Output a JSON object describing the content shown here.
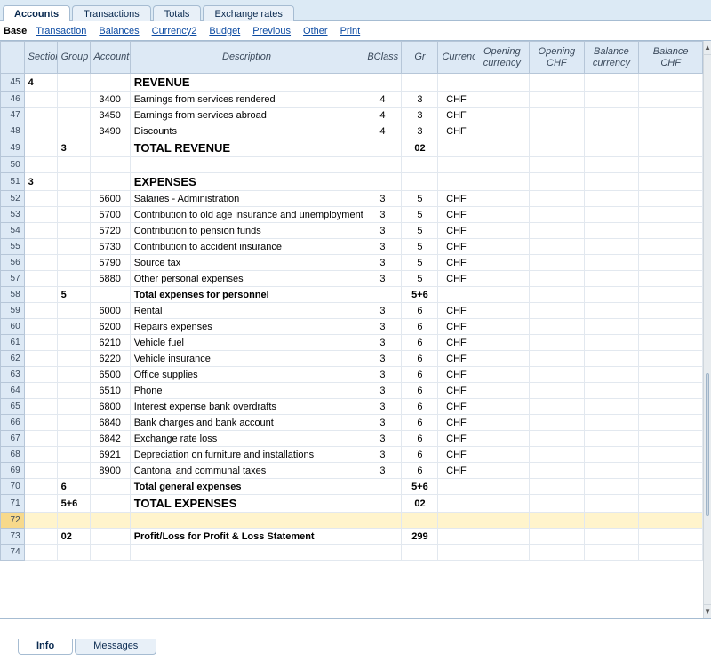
{
  "tabs_top": [
    {
      "label": "Accounts",
      "active": true
    },
    {
      "label": "Transactions",
      "active": false
    },
    {
      "label": "Totals",
      "active": false
    },
    {
      "label": "Exchange rates",
      "active": false
    }
  ],
  "subnav": {
    "base": "Base",
    "links": [
      "Transaction",
      "Balances",
      "Currency2",
      "Budget",
      "Previous",
      "Other",
      "Print"
    ]
  },
  "columns": [
    "Section",
    "Group",
    "Account",
    "Description",
    "BClass",
    "Gr",
    "Currency",
    "Opening currency",
    "Opening CHF",
    "Balance currency",
    "Balance CHF"
  ],
  "rows": [
    {
      "n": 45,
      "section": "4",
      "group": "",
      "account": "",
      "desc": "REVENUE",
      "bclass": "",
      "gr": "",
      "curr": "",
      "bold": true,
      "big": true
    },
    {
      "n": 46,
      "section": "",
      "group": "",
      "account": "3400",
      "desc": "Earnings from services rendered",
      "bclass": "4",
      "gr": "3",
      "curr": "CHF"
    },
    {
      "n": 47,
      "section": "",
      "group": "",
      "account": "3450",
      "desc": "Earnings from services abroad",
      "bclass": "4",
      "gr": "3",
      "curr": "CHF"
    },
    {
      "n": 48,
      "section": "",
      "group": "",
      "account": "3490",
      "desc": "Discounts",
      "bclass": "4",
      "gr": "3",
      "curr": "CHF"
    },
    {
      "n": 49,
      "section": "",
      "group": "3",
      "account": "",
      "desc": "TOTAL REVENUE",
      "bclass": "",
      "gr": "02",
      "curr": "",
      "bold": true,
      "big": true
    },
    {
      "n": 50,
      "section": "",
      "group": "",
      "account": "",
      "desc": "",
      "bclass": "",
      "gr": "",
      "curr": ""
    },
    {
      "n": 51,
      "section": "3",
      "group": "",
      "account": "",
      "desc": "EXPENSES",
      "bclass": "",
      "gr": "",
      "curr": "",
      "bold": true,
      "big": true
    },
    {
      "n": 52,
      "section": "",
      "group": "",
      "account": "5600",
      "desc": "Salaries - Administration",
      "bclass": "3",
      "gr": "5",
      "curr": "CHF"
    },
    {
      "n": 53,
      "section": "",
      "group": "",
      "account": "5700",
      "desc": "Contribution to old age insurance and unemployment",
      "bclass": "3",
      "gr": "5",
      "curr": "CHF"
    },
    {
      "n": 54,
      "section": "",
      "group": "",
      "account": "5720",
      "desc": "Contribution to pension funds",
      "bclass": "3",
      "gr": "5",
      "curr": "CHF"
    },
    {
      "n": 55,
      "section": "",
      "group": "",
      "account": "5730",
      "desc": "Contribution to accident insurance",
      "bclass": "3",
      "gr": "5",
      "curr": "CHF"
    },
    {
      "n": 56,
      "section": "",
      "group": "",
      "account": "5790",
      "desc": "Source tax",
      "bclass": "3",
      "gr": "5",
      "curr": "CHF"
    },
    {
      "n": 57,
      "section": "",
      "group": "",
      "account": "5880",
      "desc": "Other personal expenses",
      "bclass": "3",
      "gr": "5",
      "curr": "CHF"
    },
    {
      "n": 58,
      "section": "",
      "group": "5",
      "account": "",
      "desc": "Total expenses for personnel",
      "bclass": "",
      "gr": "5+6",
      "curr": "",
      "bold": true
    },
    {
      "n": 59,
      "section": "",
      "group": "",
      "account": "6000",
      "desc": "Rental",
      "bclass": "3",
      "gr": "6",
      "curr": "CHF"
    },
    {
      "n": 60,
      "section": "",
      "group": "",
      "account": "6200",
      "desc": "Repairs expenses",
      "bclass": "3",
      "gr": "6",
      "curr": "CHF"
    },
    {
      "n": 61,
      "section": "",
      "group": "",
      "account": "6210",
      "desc": "Vehicle fuel",
      "bclass": "3",
      "gr": "6",
      "curr": "CHF"
    },
    {
      "n": 62,
      "section": "",
      "group": "",
      "account": "6220",
      "desc": "Vehicle insurance",
      "bclass": "3",
      "gr": "6",
      "curr": "CHF"
    },
    {
      "n": 63,
      "section": "",
      "group": "",
      "account": "6500",
      "desc": "Office supplies",
      "bclass": "3",
      "gr": "6",
      "curr": "CHF"
    },
    {
      "n": 64,
      "section": "",
      "group": "",
      "account": "6510",
      "desc": "Phone",
      "bclass": "3",
      "gr": "6",
      "curr": "CHF"
    },
    {
      "n": 65,
      "section": "",
      "group": "",
      "account": "6800",
      "desc": "Interest expense bank overdrafts",
      "bclass": "3",
      "gr": "6",
      "curr": "CHF"
    },
    {
      "n": 66,
      "section": "",
      "group": "",
      "account": "6840",
      "desc": "Bank charges and bank account",
      "bclass": "3",
      "gr": "6",
      "curr": "CHF"
    },
    {
      "n": 67,
      "section": "",
      "group": "",
      "account": "6842",
      "desc": "Exchange rate loss",
      "bclass": "3",
      "gr": "6",
      "curr": "CHF"
    },
    {
      "n": 68,
      "section": "",
      "group": "",
      "account": "6921",
      "desc": "Depreciation on furniture and installations",
      "bclass": "3",
      "gr": "6",
      "curr": "CHF"
    },
    {
      "n": 69,
      "section": "",
      "group": "",
      "account": "8900",
      "desc": "Cantonal and communal taxes",
      "bclass": "3",
      "gr": "6",
      "curr": "CHF"
    },
    {
      "n": 70,
      "section": "",
      "group": "6",
      "account": "",
      "desc": "Total general expenses",
      "bclass": "",
      "gr": "5+6",
      "curr": "",
      "bold": true
    },
    {
      "n": 71,
      "section": "",
      "group": "5+6",
      "account": "",
      "desc": "TOTAL EXPENSES",
      "bclass": "",
      "gr": "02",
      "curr": "",
      "bold": true,
      "big": true
    },
    {
      "n": 72,
      "section": "",
      "group": "",
      "account": "",
      "desc": "",
      "bclass": "",
      "gr": "",
      "curr": "",
      "selected": true
    },
    {
      "n": 73,
      "section": "",
      "group": "02",
      "account": "",
      "desc": "Profit/Loss for Profit & Loss Statement",
      "bclass": "",
      "gr": "299",
      "curr": "",
      "bold": true
    },
    {
      "n": 74,
      "section": "",
      "group": "",
      "account": "",
      "desc": "",
      "bclass": "",
      "gr": "",
      "curr": ""
    }
  ],
  "tabs_bottom": [
    {
      "label": "Info",
      "active": true
    },
    {
      "label": "Messages",
      "active": false
    }
  ],
  "style": {
    "header_bg": "#dde9f5",
    "tab_bg": "#e8f0f8",
    "border": "#a6bcd2",
    "link_color": "#0b4aa2",
    "row_border": "#e2e8ef",
    "selected_bg": "#fff4cc",
    "selected_rownum_bg": "#f7d98b"
  }
}
